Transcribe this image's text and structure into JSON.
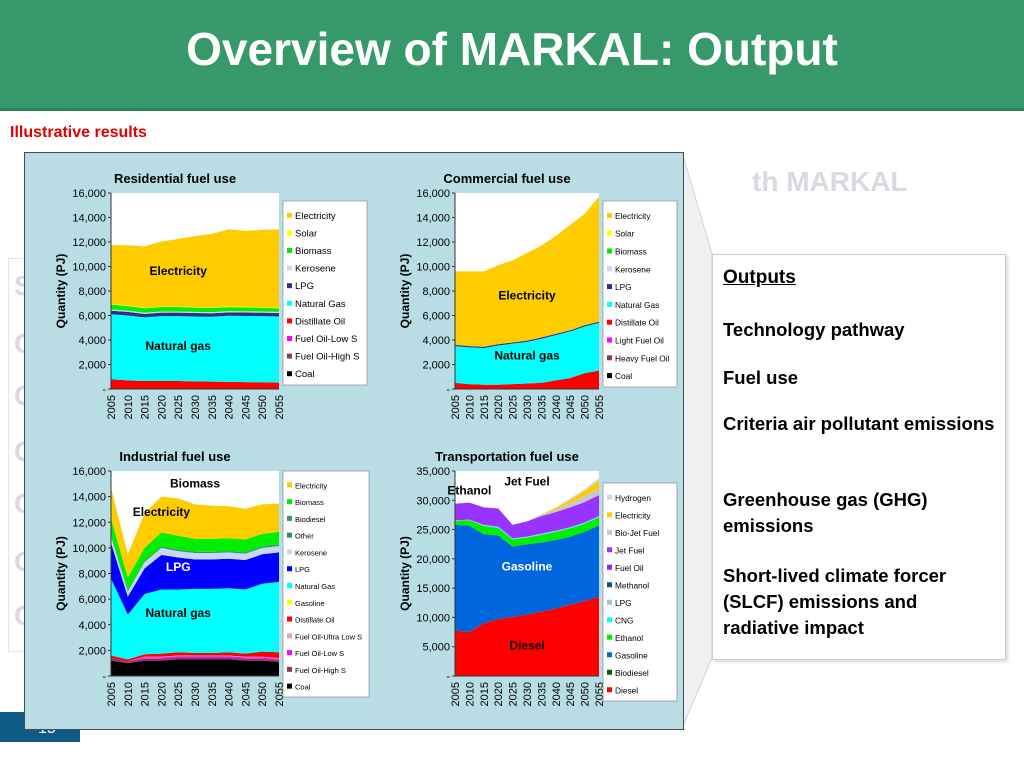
{
  "header": {
    "title": "Overview of MARKAL: Output"
  },
  "subtitle": "Illustrative results",
  "ghost": {
    "markal": "th MARKAL",
    "s": "S",
    "l1": "C",
    "l2": "C",
    "l3": "C",
    "l4": "C",
    "l5": "C",
    "l6": "C"
  },
  "outputs": {
    "title": "Outputs",
    "items": [
      {
        "text": "Technology pathway"
      },
      {
        "text": "Fuel use"
      },
      {
        "text": "Criteria air pollutant emissions"
      },
      {
        "text": "Greenhouse gas  (GHG) emissions"
      },
      {
        "text": "Short-lived climate forcer (SLCF) emissions and radiative impact"
      }
    ]
  },
  "page_number": "15",
  "chart_data": [
    {
      "type": "area",
      "title": "Residential fuel use",
      "ylabel": "Quantity (PJ)",
      "ylim": [
        0,
        16000
      ],
      "yticks": [
        "-",
        "2,000",
        "4,000",
        "6,000",
        "8,000",
        "10,000",
        "12,000",
        "14,000",
        "16,000"
      ],
      "x": [
        "2005",
        "2010",
        "2015",
        "2020",
        "2025",
        "2030",
        "2035",
        "2040",
        "2045",
        "2050",
        "2055"
      ],
      "series": [
        {
          "name": "Coal",
          "color": "#000000",
          "values": [
            0,
            0,
            0,
            0,
            0,
            0,
            0,
            0,
            0,
            0,
            0
          ]
        },
        {
          "name": "Fuel Oil-High S",
          "color": "#8b3a62",
          "values": [
            0,
            0,
            0,
            0,
            0,
            0,
            0,
            0,
            0,
            0,
            0
          ]
        },
        {
          "name": "Fuel Oil-Low S",
          "color": "#ff00ff",
          "values": [
            0,
            0,
            0,
            0,
            0,
            0,
            0,
            0,
            0,
            0,
            0
          ]
        },
        {
          "name": "Distillate Oil",
          "color": "#ff0000",
          "values": [
            800,
            700,
            650,
            650,
            650,
            620,
            600,
            580,
            560,
            550,
            520
          ]
        },
        {
          "name": "Natural Gas",
          "color": "#00ffff",
          "values": [
            5300,
            5300,
            5200,
            5300,
            5300,
            5300,
            5300,
            5400,
            5400,
            5400,
            5400
          ]
        },
        {
          "name": "LPG",
          "color": "#303080",
          "values": [
            300,
            300,
            280,
            280,
            280,
            280,
            280,
            280,
            280,
            280,
            280
          ]
        },
        {
          "name": "Kerosene",
          "color": "#c8d8f0",
          "values": [
            100,
            100,
            100,
            100,
            100,
            100,
            100,
            100,
            100,
            100,
            100
          ]
        },
        {
          "name": "Biomass",
          "color": "#00ee00",
          "values": [
            400,
            380,
            360,
            360,
            360,
            340,
            330,
            320,
            310,
            300,
            280
          ]
        },
        {
          "name": "Solar",
          "color": "#ffff00",
          "values": [
            50,
            50,
            50,
            50,
            50,
            50,
            50,
            50,
            60,
            60,
            60
          ]
        },
        {
          "name": "Electricity",
          "color": "#ffcc00",
          "values": [
            4800,
            4900,
            5000,
            5300,
            5500,
            5800,
            6000,
            6300,
            6200,
            6300,
            6400
          ]
        }
      ],
      "legend": [
        "Electricity",
        "Solar",
        "Biomass",
        "Kerosene",
        "LPG",
        "Natural Gas",
        "Distillate Oil",
        "Fuel Oil-Low S",
        "Fuel Oil-High S",
        "Coal"
      ],
      "annotations": [
        {
          "text": "Electricity",
          "x": "2025",
          "y": 9300
        },
        {
          "text": "Natural gas",
          "x": "2025",
          "y": 3200
        }
      ]
    },
    {
      "type": "area",
      "title": "Commercial fuel use",
      "ylabel": "Quantity (PJ)",
      "ylim": [
        0,
        16000
      ],
      "yticks": [
        "-",
        "2,000",
        "4,000",
        "6,000",
        "8,000",
        "10,000",
        "12,000",
        "14,000",
        "16,000"
      ],
      "x": [
        "2005",
        "2010",
        "2015",
        "2020",
        "2025",
        "2030",
        "2035",
        "2040",
        "2045",
        "2050",
        "2055"
      ],
      "series": [
        {
          "name": "Coal",
          "color": "#000000",
          "values": [
            0,
            0,
            0,
            0,
            0,
            0,
            0,
            0,
            0,
            0,
            0
          ]
        },
        {
          "name": "Heavy Fuel Oil",
          "color": "#8b3a62",
          "values": [
            0,
            0,
            0,
            0,
            0,
            0,
            0,
            0,
            0,
            0,
            0
          ]
        },
        {
          "name": "Light Fuel Oil",
          "color": "#ff00ff",
          "values": [
            0,
            0,
            0,
            0,
            0,
            0,
            0,
            0,
            0,
            0,
            0
          ]
        },
        {
          "name": "Distillate Oil",
          "color": "#ff0000",
          "values": [
            500,
            400,
            350,
            350,
            400,
            450,
            500,
            700,
            900,
            1300,
            1500
          ]
        },
        {
          "name": "Natural Gas",
          "color": "#00ffff",
          "values": [
            3000,
            3000,
            3000,
            3200,
            3300,
            3400,
            3600,
            3700,
            3800,
            3800,
            3900
          ]
        },
        {
          "name": "LPG",
          "color": "#303080",
          "values": [
            100,
            100,
            100,
            100,
            100,
            100,
            100,
            100,
            100,
            100,
            100
          ]
        },
        {
          "name": "Kerosene",
          "color": "#c8d8f0",
          "values": [
            0,
            0,
            0,
            0,
            0,
            0,
            0,
            0,
            0,
            0,
            0
          ]
        },
        {
          "name": "Biomass",
          "color": "#00ee00",
          "values": [
            0,
            0,
            0,
            0,
            0,
            0,
            0,
            0,
            0,
            0,
            0
          ]
        },
        {
          "name": "Solar",
          "color": "#ffff00",
          "values": [
            0,
            0,
            0,
            0,
            0,
            0,
            0,
            0,
            0,
            0,
            0
          ]
        },
        {
          "name": "Electricity",
          "color": "#ffcc00",
          "values": [
            6000,
            6100,
            6150,
            6450,
            6700,
            7150,
            7500,
            8000,
            8600,
            9100,
            10200
          ]
        }
      ],
      "legend": [
        "Electricity",
        "Solar",
        "Biomass",
        "Kerosene",
        "LPG",
        "Natural Gas",
        "Distillate Oil",
        "Light Fuel Oil",
        "Heavy Fuel Oil",
        "Coal"
      ],
      "annotations": [
        {
          "text": "Electricity",
          "x": "2030",
          "y": 7300
        },
        {
          "text": "Natural gas",
          "x": "2030",
          "y": 2400
        }
      ]
    },
    {
      "type": "area",
      "title": "Industrial fuel use",
      "ylabel": "Quantity (PJ)",
      "ylim": [
        0,
        16000
      ],
      "yticks": [
        "-",
        "2,000",
        "4,000",
        "6,000",
        "8,000",
        "10,000",
        "12,000",
        "14,000",
        "16,000"
      ],
      "x": [
        "2005",
        "2010",
        "2015",
        "2020",
        "2025",
        "2030",
        "2035",
        "2040",
        "2045",
        "2050",
        "2055"
      ],
      "series": [
        {
          "name": "Coal",
          "color": "#000000",
          "values": [
            1200,
            1000,
            1200,
            1200,
            1300,
            1300,
            1300,
            1300,
            1200,
            1200,
            1100
          ]
        },
        {
          "name": "Fuel Oil-High S",
          "color": "#8b3a62",
          "values": [
            200,
            150,
            150,
            150,
            150,
            150,
            150,
            150,
            150,
            150,
            150
          ]
        },
        {
          "name": "Fuel Oil-Low S",
          "color": "#ff00ff",
          "values": [
            0,
            0,
            100,
            100,
            100,
            100,
            100,
            100,
            100,
            100,
            100
          ]
        },
        {
          "name": "Fuel Oil-Ultra Low S",
          "color": "#e8a0d0",
          "values": [
            0,
            0,
            50,
            50,
            50,
            50,
            50,
            50,
            50,
            50,
            50
          ]
        },
        {
          "name": "Distillate Oil",
          "color": "#ff0000",
          "values": [
            200,
            150,
            200,
            250,
            250,
            200,
            200,
            250,
            250,
            400,
            450
          ]
        },
        {
          "name": "Gasoline",
          "color": "#ffff00",
          "values": [
            0,
            0,
            0,
            0,
            0,
            0,
            0,
            0,
            0,
            0,
            0
          ]
        },
        {
          "name": "Natural Gas",
          "color": "#00ffff",
          "values": [
            6000,
            3500,
            4700,
            5000,
            4900,
            5000,
            5000,
            5000,
            5000,
            5300,
            5500
          ]
        },
        {
          "name": "LPG",
          "color": "#0000ff",
          "values": [
            2800,
            1400,
            2000,
            2700,
            2500,
            2300,
            2300,
            2300,
            2300,
            2300,
            2300
          ]
        },
        {
          "name": "Kerosene",
          "color": "#c8d8f0",
          "values": [
            500,
            400,
            500,
            550,
            500,
            500,
            500,
            500,
            500,
            500,
            500
          ]
        },
        {
          "name": "Other",
          "color": "#2f8a7a",
          "values": [
            100,
            100,
            100,
            100,
            100,
            100,
            100,
            100,
            100,
            100,
            100
          ]
        },
        {
          "name": "Biodiesel",
          "color": "#339966",
          "values": [
            0,
            0,
            0,
            0,
            0,
            0,
            0,
            0,
            0,
            0,
            0
          ]
        },
        {
          "name": "Biomass",
          "color": "#00ee00",
          "values": [
            1300,
            1000,
            1000,
            1100,
            1100,
            1000,
            1000,
            1000,
            1000,
            1000,
            1000
          ]
        },
        {
          "name": "Electricity",
          "color": "#ffcc00",
          "values": [
            2400,
            1800,
            2700,
            2800,
            2900,
            2700,
            2600,
            2500,
            2400,
            2300,
            2200
          ]
        }
      ],
      "legend": [
        "Electricity",
        "Biomass",
        "Biodiesel",
        "Other",
        "Kerosene",
        "LPG",
        "Natural Gas",
        "Gasoline",
        "Distillate Oil",
        "Fuel Oil-Ultra Low S",
        "Fuel Oil-Low S",
        "Fuel Oil-High S",
        "Coal"
      ],
      "annotations": [
        {
          "text": "Biomass",
          "x": "2030",
          "y": 14700
        },
        {
          "text": "Electricity",
          "x": "2020",
          "y": 12500
        },
        {
          "text": "LPG",
          "x": "2025",
          "y": 8200
        },
        {
          "text": "Natural gas",
          "x": "2025",
          "y": 4600
        }
      ]
    },
    {
      "type": "area",
      "title": "Transportation fuel use",
      "ylabel": "Quantity (PJ)",
      "ylim": [
        0,
        35000
      ],
      "yticks": [
        "-",
        "5,000",
        "10,000",
        "15,000",
        "20,000",
        "25,000",
        "30,000",
        "35,000"
      ],
      "x": [
        "2005",
        "2010",
        "2015",
        "2020",
        "2025",
        "2030",
        "2035",
        "2040",
        "2045",
        "2050",
        "2055"
      ],
      "series": [
        {
          "name": "Diesel",
          "color": "#ff0000",
          "values": [
            7800,
            7500,
            9000,
            9700,
            10100,
            10500,
            11000,
            11500,
            12200,
            12800,
            13500
          ]
        },
        {
          "name": "Biodiesel",
          "color": "#006400",
          "values": [
            0,
            0,
            0,
            0,
            0,
            0,
            0,
            0,
            0,
            0,
            0
          ]
        },
        {
          "name": "Gasoline",
          "color": "#0066dd",
          "values": [
            18000,
            18200,
            15200,
            14300,
            12000,
            12000,
            11800,
            11700,
            11600,
            11800,
            12200
          ]
        },
        {
          "name": "Ethanol",
          "color": "#00ee00",
          "values": [
            700,
            900,
            1400,
            1300,
            1200,
            1100,
            1300,
            1400,
            1400,
            1400,
            1400
          ]
        },
        {
          "name": "CNG",
          "color": "#00ffff",
          "values": [
            0,
            0,
            100,
            100,
            100,
            100,
            100,
            100,
            100,
            100,
            100
          ]
        },
        {
          "name": "LPG",
          "color": "#a0c0e8",
          "values": [
            100,
            100,
            100,
            100,
            100,
            100,
            100,
            100,
            100,
            100,
            100
          ]
        },
        {
          "name": "Methanol",
          "color": "#1f4e79",
          "values": [
            0,
            0,
            0,
            0,
            0,
            0,
            0,
            0,
            0,
            0,
            0
          ]
        },
        {
          "name": "Fuel Oil",
          "color": "#a020f0",
          "values": [
            0,
            0,
            0,
            0,
            0,
            0,
            0,
            0,
            0,
            0,
            0
          ]
        },
        {
          "name": "Jet Fuel",
          "color": "#9933ff",
          "values": [
            2800,
            2900,
            3000,
            3100,
            2300,
            2600,
            3000,
            3200,
            3400,
            3500,
            3600
          ]
        },
        {
          "name": "Bio-Jet Fuel",
          "color": "#c8c8c8",
          "values": [
            0,
            0,
            0,
            0,
            0,
            0,
            200,
            400,
            700,
            1000,
            1200
          ]
        },
        {
          "name": "Electricity",
          "color": "#ffcc00",
          "values": [
            0,
            0,
            0,
            0,
            0,
            0,
            100,
            300,
            600,
            900,
            1300
          ]
        },
        {
          "name": "Hydrogen",
          "color": "#c8d8f0",
          "values": [
            0,
            0,
            0,
            0,
            0,
            0,
            0,
            100,
            200,
            300,
            400
          ]
        }
      ],
      "legend": [
        "Hydrogen",
        "Electricity",
        "Bio-Jet Fuel",
        "Jet Fuel",
        "Fuel Oil",
        "Methanol",
        "LPG",
        "CNG",
        "Ethanol",
        "Gasoline",
        "Biodiesel",
        "Diesel"
      ],
      "annotations": [
        {
          "text": "Jet Fuel",
          "x": "2030",
          "y": 32500
        },
        {
          "text": "Ethanol",
          "x": "2010",
          "y": 31000
        },
        {
          "text": "Gasoline",
          "x": "2030",
          "y": 18000
        },
        {
          "text": "Diesel",
          "x": "2030",
          "y": 4500
        }
      ]
    }
  ]
}
